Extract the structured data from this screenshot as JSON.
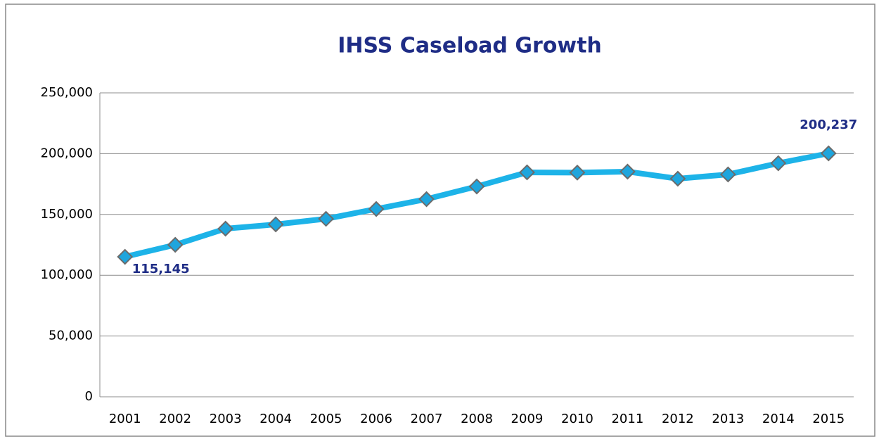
{
  "chart_data": {
    "type": "line",
    "title": "IHSS Caseload Growth",
    "categories": [
      "2001",
      "2002",
      "2003",
      "2004",
      "2005",
      "2006",
      "2007",
      "2008",
      "2009",
      "2010",
      "2011",
      "2012",
      "2013",
      "2014",
      "2015"
    ],
    "values": [
      115145,
      125000,
      138300,
      141800,
      146400,
      154500,
      162600,
      173000,
      184600,
      184400,
      185200,
      179400,
      182900,
      192100,
      200237
    ],
    "value_labels": [
      "115,145",
      null,
      null,
      null,
      null,
      null,
      null,
      null,
      null,
      null,
      null,
      null,
      null,
      null,
      "200,237"
    ],
    "color": "#1db3e8",
    "marker_color": "#1ea5dd",
    "ylim": [
      0,
      250000
    ],
    "yticks": [
      0,
      {
        "value": 50000,
        "label": "50,000"
      },
      {
        "value": 100000,
        "label": "100,000"
      },
      {
        "value": 150000,
        "label": "150,000"
      },
      {
        "value": 200000,
        "label": "200,000"
      },
      {
        "value": 250000,
        "label": "250,000"
      }
    ],
    "grid": true
  }
}
